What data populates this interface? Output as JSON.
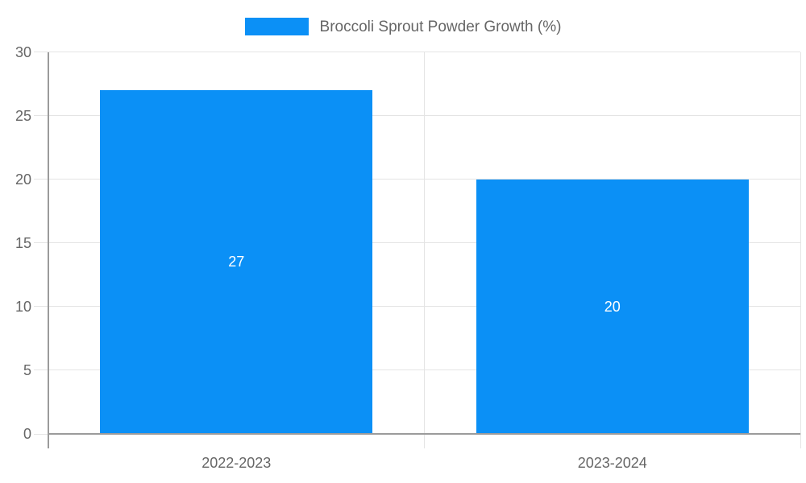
{
  "chart_data": {
    "type": "bar",
    "title": "Broccoli Sprout Powder Growth (%)",
    "categories": [
      "2022-2023",
      "2023-2024"
    ],
    "values": [
      27,
      20
    ],
    "value_labels": [
      "27",
      "20"
    ],
    "yticks": [
      0,
      5,
      10,
      15,
      20,
      25,
      30
    ],
    "ylim": [
      0,
      30
    ],
    "xlabel": "",
    "ylabel": "",
    "legend_position": "top",
    "legend_entries": [
      "Broccoli Sprout Powder Growth (%)"
    ],
    "grid": true
  },
  "colors": {
    "bar": "#0b90f6",
    "grid": "#e4e4e4",
    "axis": "#9b9b9b",
    "tick_label": "#666666",
    "legend_text": "#666666",
    "bar_label": "#ffffff",
    "background": "#ffffff"
  }
}
